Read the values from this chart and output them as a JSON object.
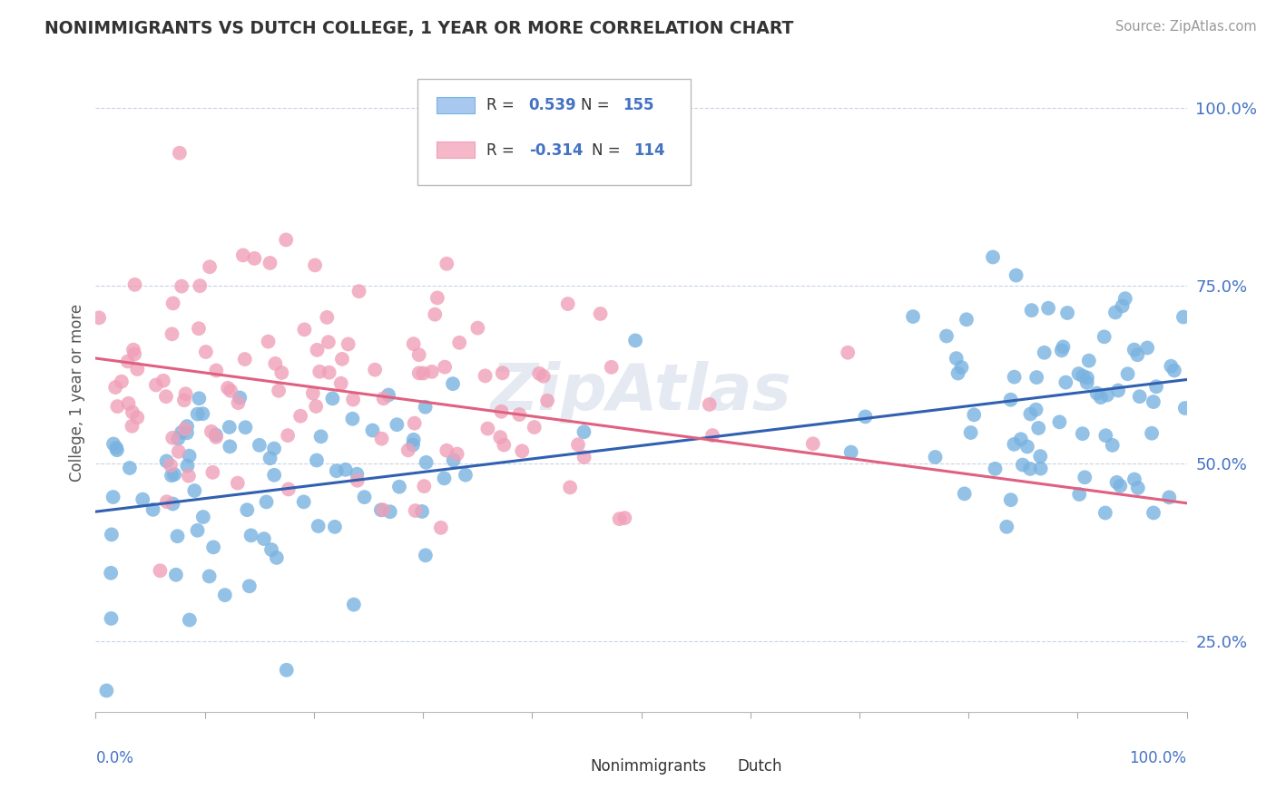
{
  "title": "NONIMMIGRANTS VS DUTCH COLLEGE, 1 YEAR OR MORE CORRELATION CHART",
  "source_text": "Source: ZipAtlas.com",
  "ylabel": "College, 1 year or more",
  "right_yticks": [
    "25.0%",
    "50.0%",
    "75.0%",
    "100.0%"
  ],
  "right_ytick_vals": [
    0.25,
    0.5,
    0.75,
    1.0
  ],
  "legend_entries": [
    {
      "label": "Nonimmigrants",
      "color": "#a8c8f0",
      "R": "0.539",
      "N": "155"
    },
    {
      "label": "Dutch",
      "color": "#f4b8c8",
      "R": "-0.314",
      "N": "114"
    }
  ],
  "blue_dot_color": "#7ab3e0",
  "pink_dot_color": "#f0a0b8",
  "trend_blue_color": "#3060b0",
  "trend_pink_color": "#e06080",
  "R_blue": 0.539,
  "N_blue": 155,
  "R_pink": -0.314,
  "N_pink": 114,
  "xlim": [
    0.0,
    1.0
  ],
  "ylim": [
    0.15,
    1.05
  ],
  "background_color": "#ffffff",
  "grid_color": "#c8d4e8",
  "watermark": "ZipAtlas",
  "title_color": "#333333",
  "axis_label_color": "#4472c4",
  "blue_trend_start_y": 0.432,
  "blue_trend_end_y": 0.618,
  "pink_trend_start_y": 0.648,
  "pink_trend_end_y": 0.444
}
